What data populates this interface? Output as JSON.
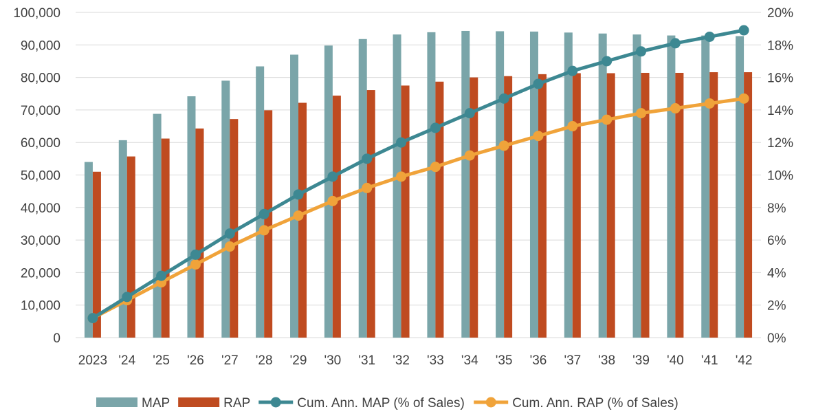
{
  "chart_data": {
    "type": "bar",
    "categories": [
      "2023",
      "'24",
      "'25",
      "'26",
      "'27",
      "'28",
      "'29",
      "'30",
      "'31",
      "'32",
      "'33",
      "'34",
      "'35",
      "'36",
      "'37",
      "'38",
      "'39",
      "'40",
      "'41",
      "'42"
    ],
    "series": [
      {
        "name": "MAP",
        "type": "bar",
        "axis": "left",
        "color": "#7aa5a9",
        "values": [
          54000,
          60700,
          68800,
          74200,
          79000,
          83400,
          87000,
          89800,
          91800,
          93200,
          93900,
          94300,
          94200,
          94100,
          93800,
          93500,
          93200,
          92900,
          92900,
          92700
        ]
      },
      {
        "name": "RAP",
        "type": "bar",
        "axis": "left",
        "color": "#bf4b20",
        "values": [
          51000,
          55700,
          61200,
          64300,
          67200,
          69900,
          72200,
          74400,
          76100,
          77500,
          78700,
          80000,
          80400,
          81000,
          81300,
          81300,
          81400,
          81400,
          81600,
          81600
        ]
      },
      {
        "name": "Cum. Ann. MAP (% of Sales)",
        "type": "line",
        "axis": "right",
        "color": "#3d8892",
        "values": [
          1.2,
          2.5,
          3.8,
          5.1,
          6.4,
          7.6,
          8.8,
          9.9,
          11.0,
          12.0,
          12.9,
          13.8,
          14.7,
          15.6,
          16.4,
          17.0,
          17.6,
          18.1,
          18.5,
          18.9
        ]
      },
      {
        "name": "Cum. Ann. RAP (% of Sales)",
        "type": "line",
        "axis": "right",
        "color": "#f0a33a",
        "values": [
          1.2,
          2.3,
          3.4,
          4.5,
          5.6,
          6.6,
          7.5,
          8.4,
          9.2,
          9.9,
          10.5,
          11.2,
          11.8,
          12.4,
          13.0,
          13.4,
          13.8,
          14.1,
          14.4,
          14.7
        ]
      }
    ],
    "yleft": {
      "min": 0,
      "max": 100000,
      "step": 10000,
      "ticks": [
        "0",
        "10,000",
        "20,000",
        "30,000",
        "40,000",
        "50,000",
        "60,000",
        "70,000",
        "80,000",
        "90,000",
        "100,000"
      ]
    },
    "yright": {
      "min": 0,
      "max": 20,
      "step": 2,
      "ticks": [
        "0%",
        "2%",
        "4%",
        "6%",
        "8%",
        "10%",
        "12%",
        "14%",
        "16%",
        "18%",
        "20%"
      ]
    },
    "title": "",
    "xlabel": "",
    "ylabel": "",
    "grid": true,
    "gridColor": "#d9d9d9",
    "legend": "bottom"
  }
}
